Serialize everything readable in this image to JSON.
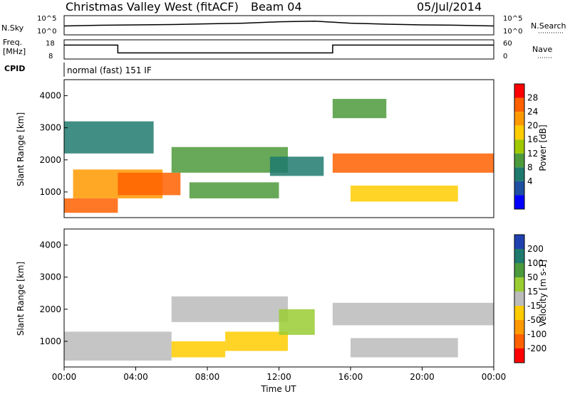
{
  "header": {
    "title": "Christmas Valley West (fitACF)",
    "beam": "Beam 04",
    "date": "05/Jul/2014"
  },
  "noise_panel": {
    "left_label": "N.Sky",
    "right_label": "N.Search",
    "left_ticks": [
      "10^5",
      "10^0"
    ],
    "right_ticks": [
      "10^5",
      "10^0"
    ]
  },
  "freq_panel": {
    "left_label_1": "Freq.",
    "left_label_2": "[MHz]",
    "right_label": "Nave",
    "left_ticks": [
      "18",
      "8"
    ],
    "right_ticks": [
      "60",
      "0"
    ]
  },
  "cpid": {
    "label": "CPID",
    "text": "normal (fast) 151 IF"
  },
  "time_axis": {
    "label": "Time UT",
    "ticks": [
      "00:00",
      "04:00",
      "08:00",
      "12:00",
      "16:00",
      "20:00",
      "00:00"
    ]
  },
  "power_colorbar": {
    "label": "Power [dB]",
    "ticks": [
      "28",
      "24",
      "20",
      "16",
      "12",
      "8",
      "4"
    ],
    "colors": [
      "#ff0000",
      "#ff6000",
      "#ff9900",
      "#ffcc00",
      "#a0c800",
      "#4c9a3c",
      "#1f7a6e",
      "#1f4fa0",
      "#0000ff"
    ]
  },
  "velocity_colorbar": {
    "label": "Velocity [m s-1]",
    "ticks": [
      "200",
      "100",
      "50",
      "15",
      "-15",
      "-50",
      "-100",
      "-200"
    ],
    "colors": [
      "#2040b0",
      "#1f7a6e",
      "#4c9a3c",
      "#9acd32",
      "#bbbbbb",
      "#ffcc00",
      "#ff9900",
      "#ff6000",
      "#ff0000"
    ]
  },
  "chart_data": [
    {
      "type": "line",
      "title": "N.Sky / N.Search",
      "x": [
        0,
        2,
        4,
        6,
        8,
        10,
        12,
        14,
        16,
        18,
        20,
        22,
        24
      ],
      "series": [
        {
          "name": "N.Sky",
          "values": [
            2.2,
            2.4,
            2.5,
            2.6,
            2.8,
            3.0,
            3.4,
            3.6,
            3.0,
            2.7,
            2.5,
            2.4,
            2.2
          ]
        }
      ]
    },
    {
      "type": "line",
      "title": "Freq. [MHz]",
      "x": [
        0,
        3,
        3,
        15,
        15,
        24
      ],
      "series": [
        {
          "name": "Freq.",
          "values": [
            16,
            16,
            11,
            11,
            16,
            16
          ]
        }
      ]
    },
    {
      "type": "heatmap",
      "xlabel": "Time UT",
      "ylabel": "Slant Range [km]",
      "xlim": [
        0,
        24
      ],
      "ylim": [
        200,
        4500
      ],
      "yticks": [
        1000,
        2000,
        3000,
        4000
      ],
      "quantity": "Power [dB]",
      "blobs": [
        {
          "t0": 0.0,
          "t1": 3.0,
          "r0": 350,
          "r1": 800,
          "v": 27
        },
        {
          "t0": 0.5,
          "t1": 5.5,
          "r0": 800,
          "r1": 1700,
          "v": 22
        },
        {
          "t0": 3.0,
          "t1": 6.5,
          "r0": 900,
          "r1": 1600,
          "v": 26
        },
        {
          "t0": 6.0,
          "t1": 12.5,
          "r0": 1600,
          "r1": 2400,
          "v": 12
        },
        {
          "t0": 7.0,
          "t1": 12.0,
          "r0": 800,
          "r1": 1300,
          "v": 14
        },
        {
          "t0": 11.5,
          "t1": 14.5,
          "r0": 1500,
          "r1": 2100,
          "v": 9
        },
        {
          "t0": 15.0,
          "t1": 24.0,
          "r0": 1600,
          "r1": 2200,
          "v": 25
        },
        {
          "t0": 16.0,
          "t1": 22.0,
          "r0": 700,
          "r1": 1200,
          "v": 19
        },
        {
          "t0": 0.0,
          "t1": 5.0,
          "r0": 2200,
          "r1": 3200,
          "v": 10
        },
        {
          "t0": 15.0,
          "t1": 18.0,
          "r0": 3300,
          "r1": 3900,
          "v": 14
        }
      ]
    },
    {
      "type": "heatmap",
      "xlabel": "Time UT",
      "ylabel": "Slant Range [km]",
      "xlim": [
        0,
        24
      ],
      "ylim": [
        200,
        4500
      ],
      "yticks": [
        1000,
        2000,
        3000,
        4000
      ],
      "quantity": "Velocity [m s-1]",
      "blobs": [
        {
          "t0": 0.0,
          "t1": 6.0,
          "r0": 400,
          "r1": 1300,
          "v": 0
        },
        {
          "t0": 6.0,
          "t1": 12.5,
          "r0": 1600,
          "r1": 2400,
          "v": 0
        },
        {
          "t0": 6.0,
          "t1": 9.0,
          "r0": 500,
          "r1": 1000,
          "v": -80
        },
        {
          "t0": 9.0,
          "t1": 12.5,
          "r0": 700,
          "r1": 1300,
          "v": -60
        },
        {
          "t0": 15.0,
          "t1": 24.0,
          "r0": 1500,
          "r1": 2200,
          "v": 0
        },
        {
          "t0": 16.0,
          "t1": 22.0,
          "r0": 500,
          "r1": 1100,
          "v": 0
        },
        {
          "t0": 12.0,
          "t1": 14.0,
          "r0": 1200,
          "r1": 2000,
          "v": 40
        }
      ]
    }
  ]
}
